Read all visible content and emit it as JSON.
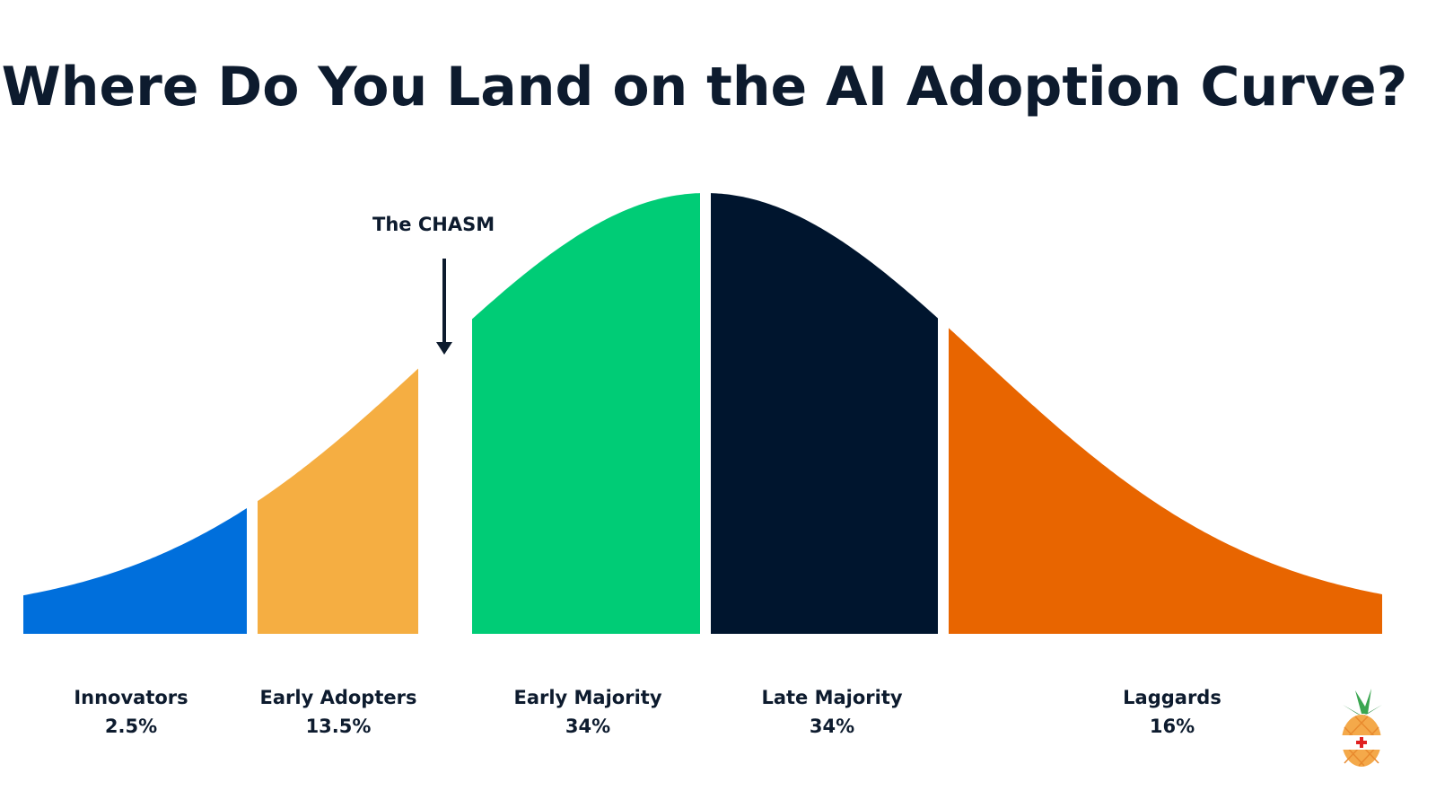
{
  "chart_data": {
    "type": "area",
    "title": "Where Do You Land on the AI Adoption Curve?",
    "annotation": "The CHASM",
    "categories": [
      "Innovators",
      "Early Adopters",
      "Early Majority",
      "Late Majority",
      "Laggards"
    ],
    "values": [
      2.5,
      13.5,
      34,
      34,
      16
    ],
    "value_labels": [
      "2.5%",
      "13.5%",
      "34%",
      "34%",
      "16%"
    ],
    "colors": [
      "#006fdc",
      "#f5ae42",
      "#00cc76",
      "#00152e",
      "#e86500"
    ],
    "xlabel": "",
    "ylabel": "",
    "grid": false,
    "legend": "none"
  }
}
